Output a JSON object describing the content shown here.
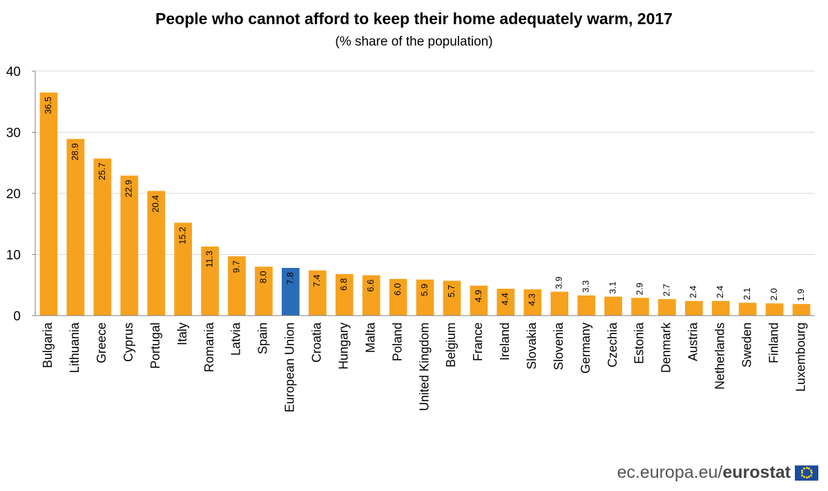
{
  "chart_data": {
    "type": "bar",
    "title": "People who cannot afford to keep their home adequately warm, 2017",
    "subtitle": "(% share of the population)",
    "xlabel": "",
    "ylabel": "",
    "ylim": [
      0,
      40
    ],
    "yticks": [
      0,
      10,
      20,
      30,
      40
    ],
    "grid": true,
    "legend": "none",
    "categories": [
      "Bulgaria",
      "Lithuania",
      "Greece",
      "Cyprus",
      "Portugal",
      "Italy",
      "Romania",
      "Latvia",
      "Spain",
      "European Union",
      "Croatia",
      "Hungary",
      "Malta",
      "Poland",
      "United Kingdom",
      "Belgium",
      "France",
      "Ireland",
      "Slovakia",
      "Slovenia",
      "Germany",
      "Czechia",
      "Estonia",
      "Denmark",
      "Austria",
      "Netherlands",
      "Sweden",
      "Finland",
      "Luxembourg"
    ],
    "values": [
      36.5,
      28.9,
      25.7,
      22.9,
      20.4,
      15.2,
      11.3,
      9.7,
      8.0,
      7.8,
      7.4,
      6.8,
      6.6,
      6.0,
      5.9,
      5.7,
      4.9,
      4.4,
      4.3,
      3.9,
      3.3,
      3.1,
      2.9,
      2.7,
      2.4,
      2.4,
      2.1,
      2.0,
      1.9
    ],
    "labels": [
      "36.5",
      "28.9",
      "25.7",
      "22.9",
      "20.4",
      "15.2",
      "11.3",
      "9.7",
      "8.0",
      "7.8",
      "7.4",
      "6.8",
      "6.6",
      "6.0",
      "5.9",
      "5.7",
      "4.9",
      "4.4",
      "4.3",
      "3.9",
      "3.3",
      "3.1",
      "2.9",
      "2.7",
      "2.4",
      "2.4",
      "2.1",
      "2.0",
      "1.9"
    ],
    "highlight_category": "European Union",
    "colors": {
      "bar": "#F6A21E",
      "highlight": "#2B6CB7",
      "grid": "#D9D9D9",
      "axis": "#7F7F7F"
    }
  },
  "footer": {
    "source_prefix": "ec.europa.eu/",
    "source_brand": "eurostat"
  }
}
